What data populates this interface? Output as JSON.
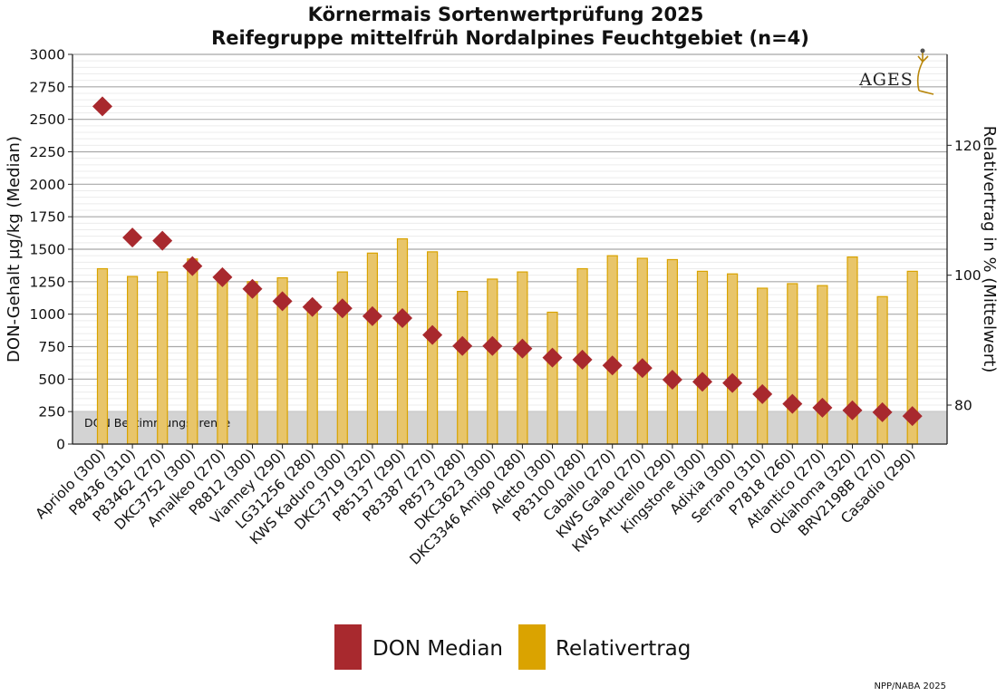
{
  "chart_data": {
    "type": "bar+scatter",
    "title": "Körnermais Sortenwertprüfung 2025",
    "subtitle": "Reifegruppe mittelfrüh Nordalpines Feuchtgebiet (n=4)",
    "ylabel_left": "DON-Gehalt µg/kg (Median)",
    "ylabel_right": "Relativertrag in % (Mittelwert)",
    "ylim_left": [
      0,
      3000
    ],
    "yticks_left": [
      0,
      250,
      500,
      750,
      1000,
      1250,
      1500,
      1750,
      2000,
      2250,
      2500,
      2750,
      3000
    ],
    "ylim_right": [
      74,
      134
    ],
    "yticks_right": [
      80,
      100,
      120
    ],
    "limit_band": {
      "upper": 250,
      "label": "DON Bestimmungsgrenze"
    },
    "categories": [
      "Apriolo (300)",
      "P8436 (310)",
      "P83462 (270)",
      "DKC3752 (300)",
      "Amalkeo (270)",
      "P8812 (300)",
      "Vianney (290)",
      "LG31256 (280)",
      "KWS Kaduro (300)",
      "DKC3719 (320)",
      "P85137 (290)",
      "P83387 (270)",
      "P8573 (280)",
      "DKC3623 (300)",
      "DKC3346 Amigo (280)",
      "Aletto (300)",
      "P83100 (280)",
      "Caballo (270)",
      "KWS Galao (270)",
      "KWS Arturello (290)",
      "Kingstone (300)",
      "Adixia (300)",
      "Serrano (310)",
      "P7818 (260)",
      "Atlantico (270)",
      "Oklahoma (320)",
      "BRV2198B (270)",
      "Casadio (290)"
    ],
    "series": [
      {
        "name": "DON Median",
        "axis": "left",
        "kind": "diamond",
        "color": "#a8292e",
        "values": [
          2600,
          1590,
          1565,
          1370,
          1285,
          1195,
          1100,
          1055,
          1045,
          985,
          970,
          840,
          755,
          755,
          735,
          665,
          650,
          605,
          585,
          495,
          480,
          470,
          385,
          310,
          280,
          260,
          245,
          215
        ]
      },
      {
        "name": "Relativertrag",
        "axis": "right",
        "kind": "bar",
        "color": "#e8c56a",
        "edge": "#d9a300",
        "values": [
          101.0,
          99.8,
          100.5,
          102.5,
          100.0,
          99.0,
          99.6,
          95.8,
          100.5,
          103.4,
          105.6,
          103.6,
          97.5,
          99.4,
          100.5,
          94.3,
          101.0,
          103.0,
          102.6,
          102.4,
          100.6,
          100.2,
          98.0,
          98.7,
          98.4,
          102.8,
          96.7,
          100.6
        ]
      }
    ],
    "legend": [
      "DON Median",
      "Relativertrag"
    ],
    "legend_position": "bottom",
    "grid": true
  },
  "logo": "AGES",
  "source_note": "NPP/NABA 2025"
}
